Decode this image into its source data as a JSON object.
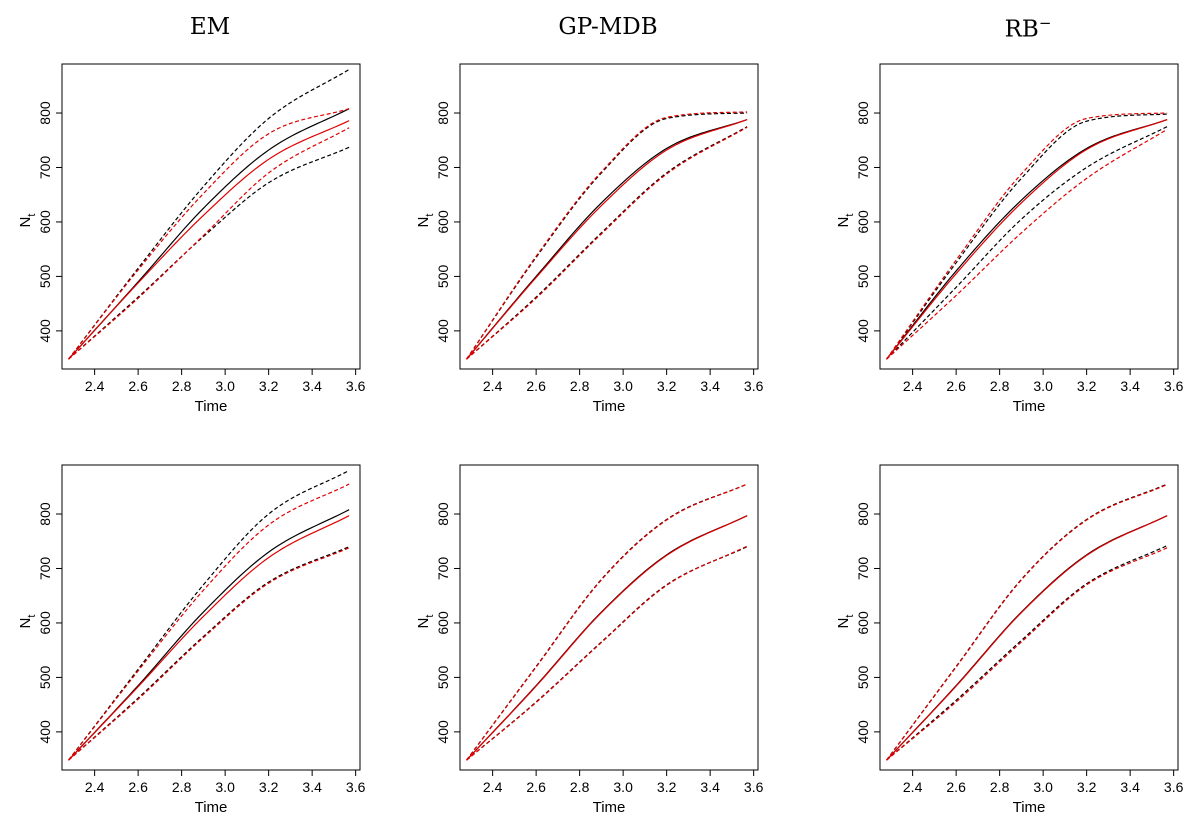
{
  "columns": [
    {
      "label": "EM"
    },
    {
      "label": "GP-MDB"
    },
    {
      "label": "RB",
      "superscript": "−"
    }
  ],
  "axis": {
    "xlabel": "Time",
    "ylabel_main": "N",
    "ylabel_sub": "t",
    "xticks": [
      2.4,
      2.6,
      2.8,
      3.0,
      3.2,
      3.4,
      3.6
    ],
    "xtick_labels": [
      "2.4",
      "2.6",
      "2.8",
      "3.0",
      "3.2",
      "3.4",
      "3.6"
    ],
    "yticks": [
      400,
      500,
      600,
      700,
      800
    ],
    "ytick_labels": [
      "400",
      "500",
      "600",
      "700",
      "800"
    ]
  },
  "colors": {
    "black": "#000000",
    "red": "#e00000"
  },
  "chart_data": [
    {
      "type": "line",
      "row": 1,
      "col": 1,
      "title": "EM",
      "xlabel": "Time",
      "ylabel": "N_t",
      "xlim": [
        2.25,
        3.62
      ],
      "ylim": [
        330,
        890
      ],
      "grid": false,
      "series": [
        {
          "color": "black",
          "dash": false,
          "x": [
            2.28,
            2.6,
            2.9,
            3.2,
            3.57
          ],
          "y": [
            348,
            490,
            625,
            732,
            808
          ]
        },
        {
          "color": "black",
          "dash": true,
          "x": [
            2.28,
            2.6,
            2.9,
            3.2,
            3.57
          ],
          "y": [
            348,
            515,
            665,
            790,
            880
          ]
        },
        {
          "color": "black",
          "dash": true,
          "x": [
            2.28,
            2.6,
            2.9,
            3.2,
            3.57
          ],
          "y": [
            348,
            462,
            573,
            672,
            737
          ]
        },
        {
          "color": "red",
          "dash": false,
          "x": [
            2.28,
            2.6,
            2.9,
            3.2,
            3.57
          ],
          "y": [
            348,
            488,
            612,
            715,
            786
          ]
        },
        {
          "color": "red",
          "dash": true,
          "x": [
            2.28,
            2.6,
            2.9,
            3.2,
            3.57
          ],
          "y": [
            348,
            512,
            652,
            762,
            808
          ]
        },
        {
          "color": "red",
          "dash": true,
          "x": [
            2.28,
            2.6,
            2.9,
            3.2,
            3.57
          ],
          "y": [
            348,
            460,
            575,
            690,
            773
          ]
        }
      ]
    },
    {
      "type": "line",
      "row": 1,
      "col": 2,
      "title": "GP-MDB",
      "xlabel": "Time",
      "ylabel": "N_t",
      "xlim": [
        2.25,
        3.62
      ],
      "ylim": [
        330,
        890
      ],
      "grid": false,
      "series": [
        {
          "color": "black",
          "dash": false,
          "x": [
            2.28,
            2.6,
            2.9,
            3.2,
            3.57
          ],
          "y": [
            348,
            500,
            635,
            735,
            788
          ]
        },
        {
          "color": "black",
          "dash": true,
          "x": [
            2.28,
            2.6,
            2.9,
            3.2,
            3.57
          ],
          "y": [
            348,
            535,
            690,
            790,
            800
          ]
        },
        {
          "color": "black",
          "dash": true,
          "x": [
            2.28,
            2.6,
            2.9,
            3.2,
            3.57
          ],
          "y": [
            348,
            462,
            580,
            690,
            775
          ]
        },
        {
          "color": "red",
          "dash": false,
          "x": [
            2.28,
            2.6,
            2.9,
            3.2,
            3.57
          ],
          "y": [
            348,
            498,
            630,
            732,
            788
          ]
        },
        {
          "color": "red",
          "dash": true,
          "x": [
            2.28,
            2.6,
            2.9,
            3.2,
            3.57
          ],
          "y": [
            348,
            537,
            692,
            792,
            802
          ]
        },
        {
          "color": "red",
          "dash": true,
          "x": [
            2.28,
            2.6,
            2.9,
            3.2,
            3.57
          ],
          "y": [
            348,
            460,
            578,
            688,
            774
          ]
        }
      ]
    },
    {
      "type": "line",
      "row": 1,
      "col": 3,
      "title": "RB−",
      "xlabel": "Time",
      "ylabel": "N_t",
      "xlim": [
        2.25,
        3.62
      ],
      "ylim": [
        330,
        890
      ],
      "grid": false,
      "series": [
        {
          "color": "black",
          "dash": false,
          "x": [
            2.28,
            2.6,
            2.9,
            3.2,
            3.57
          ],
          "y": [
            348,
            510,
            640,
            735,
            788
          ]
        },
        {
          "color": "black",
          "dash": true,
          "x": [
            2.28,
            2.6,
            2.9,
            3.2,
            3.57
          ],
          "y": [
            348,
            525,
            680,
            785,
            798
          ]
        },
        {
          "color": "black",
          "dash": true,
          "x": [
            2.28,
            2.6,
            2.9,
            3.2,
            3.57
          ],
          "y": [
            348,
            480,
            605,
            700,
            775
          ]
        },
        {
          "color": "red",
          "dash": false,
          "x": [
            2.28,
            2.6,
            2.9,
            3.2,
            3.57
          ],
          "y": [
            348,
            505,
            635,
            733,
            788
          ]
        },
        {
          "color": "red",
          "dash": true,
          "x": [
            2.28,
            2.6,
            2.9,
            3.2,
            3.57
          ],
          "y": [
            348,
            530,
            688,
            790,
            800
          ]
        },
        {
          "color": "red",
          "dash": true,
          "x": [
            2.28,
            2.6,
            2.9,
            3.2,
            3.57
          ],
          "y": [
            348,
            465,
            580,
            680,
            770
          ]
        }
      ]
    },
    {
      "type": "line",
      "row": 2,
      "col": 1,
      "title": "",
      "xlabel": "Time",
      "ylabel": "N_t",
      "xlim": [
        2.25,
        3.62
      ],
      "ylim": [
        330,
        890
      ],
      "grid": false,
      "series": [
        {
          "color": "black",
          "dash": false,
          "x": [
            2.28,
            2.6,
            2.9,
            3.2,
            3.57
          ],
          "y": [
            348,
            485,
            620,
            730,
            808
          ]
        },
        {
          "color": "black",
          "dash": true,
          "x": [
            2.28,
            2.6,
            2.9,
            3.2,
            3.57
          ],
          "y": [
            348,
            515,
            670,
            800,
            880
          ]
        },
        {
          "color": "black",
          "dash": true,
          "x": [
            2.28,
            2.6,
            2.9,
            3.2,
            3.57
          ],
          "y": [
            348,
            462,
            575,
            675,
            740
          ]
        },
        {
          "color": "red",
          "dash": false,
          "x": [
            2.28,
            2.6,
            2.9,
            3.2,
            3.57
          ],
          "y": [
            348,
            483,
            612,
            720,
            797
          ]
        },
        {
          "color": "red",
          "dash": true,
          "x": [
            2.28,
            2.6,
            2.9,
            3.2,
            3.57
          ],
          "y": [
            348,
            512,
            660,
            780,
            855
          ]
        },
        {
          "color": "red",
          "dash": true,
          "x": [
            2.28,
            2.6,
            2.9,
            3.2,
            3.57
          ],
          "y": [
            348,
            460,
            573,
            673,
            738
          ]
        }
      ]
    },
    {
      "type": "line",
      "row": 2,
      "col": 2,
      "title": "",
      "xlabel": "Time",
      "ylabel": "N_t",
      "xlim": [
        2.25,
        3.62
      ],
      "ylim": [
        330,
        890
      ],
      "grid": false,
      "series": [
        {
          "color": "black",
          "dash": false,
          "x": [
            2.28,
            2.6,
            2.9,
            3.2,
            3.57
          ],
          "y": [
            348,
            485,
            620,
            725,
            797
          ]
        },
        {
          "color": "black",
          "dash": true,
          "x": [
            2.28,
            2.6,
            2.9,
            3.2,
            3.57
          ],
          "y": [
            348,
            520,
            680,
            790,
            855
          ]
        },
        {
          "color": "black",
          "dash": true,
          "x": [
            2.28,
            2.6,
            2.9,
            3.2,
            3.57
          ],
          "y": [
            348,
            455,
            565,
            670,
            740
          ]
        },
        {
          "color": "red",
          "dash": false,
          "x": [
            2.28,
            2.6,
            2.9,
            3.2,
            3.57
          ],
          "y": [
            348,
            484,
            619,
            724,
            797
          ]
        },
        {
          "color": "red",
          "dash": true,
          "x": [
            2.28,
            2.6,
            2.9,
            3.2,
            3.57
          ],
          "y": [
            348,
            519,
            679,
            789,
            855
          ]
        },
        {
          "color": "red",
          "dash": true,
          "x": [
            2.28,
            2.6,
            2.9,
            3.2,
            3.57
          ],
          "y": [
            348,
            454,
            564,
            669,
            741
          ]
        }
      ]
    },
    {
      "type": "line",
      "row": 2,
      "col": 3,
      "title": "",
      "xlabel": "Time",
      "ylabel": "N_t",
      "xlim": [
        2.25,
        3.62
      ],
      "ylim": [
        330,
        890
      ],
      "grid": false,
      "series": [
        {
          "color": "black",
          "dash": false,
          "x": [
            2.28,
            2.6,
            2.9,
            3.2,
            3.57
          ],
          "y": [
            348,
            485,
            620,
            725,
            797
          ]
        },
        {
          "color": "black",
          "dash": true,
          "x": [
            2.28,
            2.6,
            2.9,
            3.2,
            3.57
          ],
          "y": [
            348,
            520,
            680,
            790,
            855
          ]
        },
        {
          "color": "black",
          "dash": true,
          "x": [
            2.28,
            2.6,
            2.9,
            3.2,
            3.57
          ],
          "y": [
            348,
            458,
            568,
            672,
            742
          ]
        },
        {
          "color": "red",
          "dash": false,
          "x": [
            2.28,
            2.6,
            2.9,
            3.2,
            3.57
          ],
          "y": [
            348,
            484,
            619,
            724,
            797
          ]
        },
        {
          "color": "red",
          "dash": true,
          "x": [
            2.28,
            2.6,
            2.9,
            3.2,
            3.57
          ],
          "y": [
            348,
            519,
            679,
            789,
            854
          ]
        },
        {
          "color": "red",
          "dash": true,
          "x": [
            2.28,
            2.6,
            2.9,
            3.2,
            3.57
          ],
          "y": [
            348,
            455,
            565,
            670,
            738
          ]
        }
      ]
    }
  ]
}
